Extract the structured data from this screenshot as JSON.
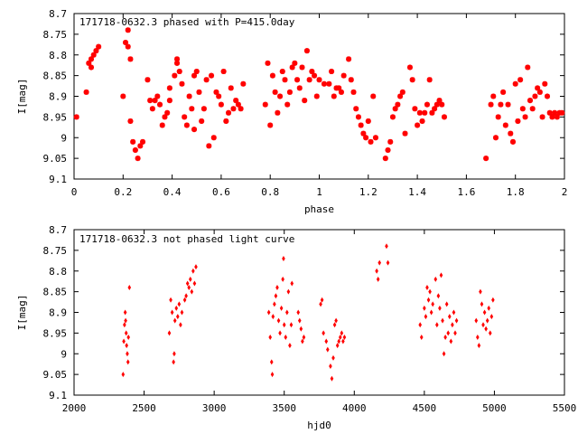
{
  "colors": {
    "points": "#ff0000",
    "frame": "#000000",
    "background": "#ffffff"
  },
  "chart_data": [
    {
      "type": "scatter",
      "title": "171718-0632.3 phased with P=415.0day",
      "xlabel": "phase",
      "ylabel": "I[mag]",
      "xlim": [
        0,
        2
      ],
      "ylim": [
        8.7,
        9.1
      ],
      "y_inverted": true,
      "xticks": [
        0,
        0.2,
        0.4,
        0.6,
        0.8,
        1,
        1.2,
        1.4,
        1.6,
        1.8,
        2
      ],
      "xtick_labels": [
        "0",
        "0.2",
        "0.4",
        "0.6",
        "0.8",
        "1",
        "1.2",
        "1.4",
        "1.6",
        "1.8",
        "2"
      ],
      "yticks": [
        8.7,
        8.75,
        8.8,
        8.85,
        8.9,
        8.95,
        9.0,
        9.05,
        9.1
      ],
      "ytick_labels": [
        "8.7",
        "8.75",
        "8.8",
        "8.85",
        "8.9",
        "8.95",
        "9",
        "9.05",
        "9.1"
      ],
      "marker": "star",
      "points": [
        [
          0.01,
          8.95
        ],
        [
          0.05,
          8.89
        ],
        [
          0.06,
          8.82
        ],
        [
          0.07,
          8.81
        ],
        [
          0.07,
          8.83
        ],
        [
          0.08,
          8.8
        ],
        [
          0.09,
          8.79
        ],
        [
          0.1,
          8.78
        ],
        [
          0.2,
          8.9
        ],
        [
          0.21,
          8.77
        ],
        [
          0.22,
          8.74
        ],
        [
          0.22,
          8.78
        ],
        [
          0.23,
          8.81
        ],
        [
          0.23,
          8.96
        ],
        [
          0.24,
          9.01
        ],
        [
          0.25,
          9.03
        ],
        [
          0.26,
          9.05
        ],
        [
          0.27,
          9.02
        ],
        [
          0.28,
          9.01
        ],
        [
          0.3,
          8.86
        ],
        [
          0.31,
          8.91
        ],
        [
          0.32,
          8.93
        ],
        [
          0.33,
          8.91
        ],
        [
          0.34,
          8.9
        ],
        [
          0.35,
          8.92
        ],
        [
          0.36,
          8.97
        ],
        [
          0.37,
          8.95
        ],
        [
          0.38,
          8.94
        ],
        [
          0.39,
          8.91
        ],
        [
          0.39,
          8.88
        ],
        [
          0.41,
          8.85
        ],
        [
          0.42,
          8.81
        ],
        [
          0.42,
          8.82
        ],
        [
          0.43,
          8.84
        ],
        [
          0.44,
          8.87
        ],
        [
          0.45,
          8.95
        ],
        [
          0.46,
          8.97
        ],
        [
          0.47,
          8.9
        ],
        [
          0.48,
          8.93
        ],
        [
          0.49,
          8.85
        ],
        [
          0.49,
          8.98
        ],
        [
          0.5,
          8.84
        ],
        [
          0.51,
          8.89
        ],
        [
          0.52,
          8.96
        ],
        [
          0.53,
          8.93
        ],
        [
          0.54,
          8.86
        ],
        [
          0.55,
          9.02
        ],
        [
          0.56,
          8.85
        ],
        [
          0.57,
          9.0
        ],
        [
          0.58,
          8.89
        ],
        [
          0.59,
          8.9
        ],
        [
          0.6,
          8.92
        ],
        [
          0.61,
          8.84
        ],
        [
          0.62,
          8.96
        ],
        [
          0.63,
          8.94
        ],
        [
          0.64,
          8.88
        ],
        [
          0.65,
          8.93
        ],
        [
          0.66,
          8.91
        ],
        [
          0.67,
          8.92
        ],
        [
          0.68,
          8.93
        ],
        [
          0.69,
          8.87
        ],
        [
          0.78,
          8.92
        ],
        [
          0.79,
          8.82
        ],
        [
          0.8,
          8.97
        ],
        [
          0.81,
          8.85
        ],
        [
          0.82,
          8.89
        ],
        [
          0.83,
          8.94
        ],
        [
          0.84,
          8.9
        ],
        [
          0.85,
          8.84
        ],
        [
          0.86,
          8.86
        ],
        [
          0.87,
          8.92
        ],
        [
          0.88,
          8.89
        ],
        [
          0.89,
          8.83
        ],
        [
          0.9,
          8.82
        ],
        [
          0.91,
          8.86
        ],
        [
          0.92,
          8.88
        ],
        [
          0.93,
          8.83
        ],
        [
          0.94,
          8.91
        ],
        [
          0.95,
          8.79
        ],
        [
          0.96,
          8.86
        ],
        [
          0.97,
          8.84
        ],
        [
          0.98,
          8.85
        ],
        [
          0.99,
          8.9
        ],
        [
          1.0,
          8.86
        ],
        [
          1.02,
          8.87
        ],
        [
          1.04,
          8.87
        ],
        [
          1.05,
          8.84
        ],
        [
          1.06,
          8.9
        ],
        [
          1.07,
          8.88
        ],
        [
          1.08,
          8.88
        ],
        [
          1.09,
          8.89
        ],
        [
          1.1,
          8.85
        ],
        [
          1.12,
          8.81
        ],
        [
          1.13,
          8.86
        ],
        [
          1.14,
          8.89
        ],
        [
          1.15,
          8.93
        ],
        [
          1.16,
          8.95
        ],
        [
          1.17,
          8.97
        ],
        [
          1.18,
          8.99
        ],
        [
          1.19,
          9.0
        ],
        [
          1.2,
          8.96
        ],
        [
          1.21,
          9.01
        ],
        [
          1.22,
          8.9
        ],
        [
          1.23,
          9.0
        ],
        [
          1.27,
          9.05
        ],
        [
          1.28,
          9.03
        ],
        [
          1.29,
          9.01
        ],
        [
          1.3,
          8.95
        ],
        [
          1.31,
          8.93
        ],
        [
          1.32,
          8.92
        ],
        [
          1.33,
          8.9
        ],
        [
          1.34,
          8.89
        ],
        [
          1.35,
          8.99
        ],
        [
          1.37,
          8.83
        ],
        [
          1.38,
          8.86
        ],
        [
          1.39,
          8.93
        ],
        [
          1.4,
          8.97
        ],
        [
          1.41,
          8.94
        ],
        [
          1.42,
          8.96
        ],
        [
          1.43,
          8.94
        ],
        [
          1.44,
          8.92
        ],
        [
          1.45,
          8.86
        ],
        [
          1.46,
          8.94
        ],
        [
          1.47,
          8.93
        ],
        [
          1.48,
          8.92
        ],
        [
          1.49,
          8.91
        ],
        [
          1.5,
          8.92
        ],
        [
          1.51,
          8.95
        ],
        [
          1.68,
          9.05
        ],
        [
          1.7,
          8.92
        ],
        [
          1.71,
          8.9
        ],
        [
          1.72,
          9.0
        ],
        [
          1.73,
          8.95
        ],
        [
          1.74,
          8.92
        ],
        [
          1.75,
          8.89
        ],
        [
          1.76,
          8.97
        ],
        [
          1.77,
          8.92
        ],
        [
          1.78,
          8.99
        ],
        [
          1.79,
          9.01
        ],
        [
          1.8,
          8.87
        ],
        [
          1.81,
          8.96
        ],
        [
          1.82,
          8.86
        ],
        [
          1.83,
          8.93
        ],
        [
          1.84,
          8.95
        ],
        [
          1.85,
          8.83
        ],
        [
          1.86,
          8.91
        ],
        [
          1.87,
          8.93
        ],
        [
          1.88,
          8.9
        ],
        [
          1.89,
          8.88
        ],
        [
          1.9,
          8.89
        ],
        [
          1.91,
          8.95
        ],
        [
          1.92,
          8.87
        ],
        [
          1.93,
          8.9
        ],
        [
          1.94,
          8.94
        ],
        [
          1.95,
          8.95
        ],
        [
          1.96,
          8.94
        ],
        [
          1.97,
          8.95
        ],
        [
          1.98,
          8.94
        ],
        [
          1.99,
          8.94
        ]
      ]
    },
    {
      "type": "scatter",
      "title": "171718-0632.3 not phased light curve",
      "xlabel": "hjd0",
      "ylabel": "I[mag]",
      "xlim": [
        2000,
        5500
      ],
      "ylim": [
        8.7,
        9.1
      ],
      "y_inverted": true,
      "xticks": [
        2000,
        2500,
        3000,
        3500,
        4000,
        4500,
        5000,
        5500
      ],
      "xtick_labels": [
        "2000",
        "2500",
        "3000",
        "3500",
        "4000",
        "4500",
        "5000",
        "5500"
      ],
      "yticks": [
        8.7,
        8.75,
        8.8,
        8.85,
        8.9,
        8.95,
        9.0,
        9.05,
        9.1
      ],
      "ytick_labels": [
        "8.7",
        "8.75",
        "8.8",
        "8.85",
        "8.9",
        "8.95",
        "9",
        "9.05",
        "9.1"
      ],
      "marker": "diamond",
      "points": [
        [
          2350,
          9.05
        ],
        [
          2355,
          8.97
        ],
        [
          2360,
          8.93
        ],
        [
          2365,
          8.9
        ],
        [
          2368,
          8.92
        ],
        [
          2372,
          8.95
        ],
        [
          2375,
          8.98
        ],
        [
          2380,
          9.0
        ],
        [
          2385,
          9.02
        ],
        [
          2388,
          8.96
        ],
        [
          2395,
          8.84
        ],
        [
          2680,
          8.95
        ],
        [
          2690,
          8.87
        ],
        [
          2700,
          8.9
        ],
        [
          2710,
          9.02
        ],
        [
          2715,
          9.0
        ],
        [
          2720,
          8.92
        ],
        [
          2730,
          8.89
        ],
        [
          2740,
          8.91
        ],
        [
          2750,
          8.88
        ],
        [
          2760,
          8.93
        ],
        [
          2770,
          8.9
        ],
        [
          2790,
          8.87
        ],
        [
          2800,
          8.86
        ],
        [
          2810,
          8.83
        ],
        [
          2820,
          8.84
        ],
        [
          2830,
          8.82
        ],
        [
          2840,
          8.85
        ],
        [
          2850,
          8.8
        ],
        [
          2860,
          8.83
        ],
        [
          2870,
          8.79
        ],
        [
          3390,
          8.9
        ],
        [
          3400,
          8.96
        ],
        [
          3410,
          9.02
        ],
        [
          3415,
          9.05
        ],
        [
          3420,
          8.91
        ],
        [
          3430,
          8.88
        ],
        [
          3440,
          8.86
        ],
        [
          3450,
          8.84
        ],
        [
          3460,
          8.92
        ],
        [
          3470,
          8.95
        ],
        [
          3480,
          8.89
        ],
        [
          3490,
          8.82
        ],
        [
          3495,
          8.77
        ],
        [
          3500,
          8.93
        ],
        [
          3510,
          8.96
        ],
        [
          3520,
          8.9
        ],
        [
          3530,
          8.85
        ],
        [
          3540,
          8.98
        ],
        [
          3550,
          8.93
        ],
        [
          3555,
          8.83
        ],
        [
          3600,
          8.9
        ],
        [
          3610,
          8.92
        ],
        [
          3620,
          8.94
        ],
        [
          3630,
          8.97
        ],
        [
          3640,
          8.96
        ],
        [
          3760,
          8.88
        ],
        [
          3770,
          8.87
        ],
        [
          3780,
          8.95
        ],
        [
          3800,
          8.97
        ],
        [
          3810,
          8.99
        ],
        [
          3830,
          9.03
        ],
        [
          3840,
          9.06
        ],
        [
          3850,
          9.01
        ],
        [
          3860,
          8.93
        ],
        [
          3870,
          8.92
        ],
        [
          3880,
          8.98
        ],
        [
          3890,
          8.97
        ],
        [
          3900,
          8.96
        ],
        [
          3910,
          8.95
        ],
        [
          3920,
          8.97
        ],
        [
          3930,
          8.96
        ],
        [
          4160,
          8.8
        ],
        [
          4170,
          8.82
        ],
        [
          4180,
          8.78
        ],
        [
          4230,
          8.74
        ],
        [
          4240,
          8.78
        ],
        [
          4470,
          8.93
        ],
        [
          4480,
          8.96
        ],
        [
          4500,
          8.89
        ],
        [
          4510,
          8.91
        ],
        [
          4520,
          8.84
        ],
        [
          4530,
          8.87
        ],
        [
          4540,
          8.85
        ],
        [
          4550,
          8.9
        ],
        [
          4560,
          8.88
        ],
        [
          4580,
          8.82
        ],
        [
          4590,
          8.93
        ],
        [
          4600,
          8.86
        ],
        [
          4610,
          8.89
        ],
        [
          4620,
          8.81
        ],
        [
          4630,
          8.92
        ],
        [
          4640,
          9.0
        ],
        [
          4650,
          8.96
        ],
        [
          4660,
          8.88
        ],
        [
          4670,
          8.95
        ],
        [
          4680,
          8.91
        ],
        [
          4690,
          8.97
        ],
        [
          4700,
          8.93
        ],
        [
          4710,
          8.9
        ],
        [
          4720,
          8.95
        ],
        [
          4730,
          8.92
        ],
        [
          4870,
          8.92
        ],
        [
          4880,
          8.96
        ],
        [
          4890,
          8.98
        ],
        [
          4900,
          8.85
        ],
        [
          4910,
          8.88
        ],
        [
          4920,
          8.93
        ],
        [
          4930,
          8.9
        ],
        [
          4940,
          8.94
        ],
        [
          4950,
          8.92
        ],
        [
          4960,
          8.89
        ],
        [
          4970,
          8.95
        ],
        [
          4980,
          8.91
        ],
        [
          4990,
          8.87
        ]
      ]
    }
  ]
}
